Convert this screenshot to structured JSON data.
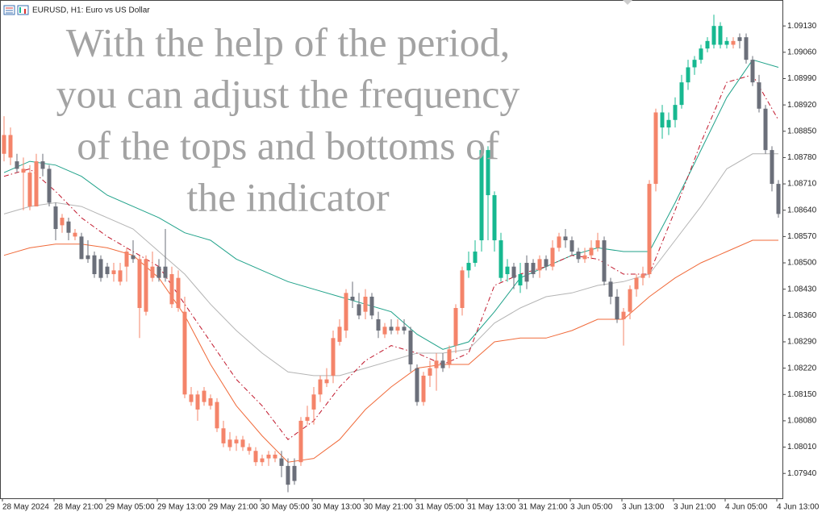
{
  "chart_data": {
    "type": "candlestick",
    "title": "EURUSD, H1:  Euro vs US Dollar",
    "annotations": [
      "With the help of the period,",
      "you can adjust the frequency",
      "of the tops and bottoms of",
      "the indicator"
    ],
    "categories": [
      "28 May 2024",
      null,
      null,
      null,
      null,
      null,
      null,
      null,
      "28 May 21:00",
      null,
      null,
      null,
      null,
      null,
      null,
      null,
      "29 May 05:00",
      null,
      null,
      null,
      null,
      null,
      null,
      null,
      "29 May 13:00",
      null,
      null,
      null,
      null,
      null,
      null,
      null,
      "29 May 21:00",
      null,
      null,
      null,
      null,
      null,
      null,
      null,
      "30 May 05:00",
      null,
      null,
      null,
      null,
      null,
      null,
      null,
      "30 May 13:00",
      null,
      null,
      null,
      null,
      null,
      null,
      null,
      "30 May 21:00",
      null,
      null,
      null,
      null,
      null,
      null,
      null,
      "31 May 05:00",
      null,
      null,
      null,
      null,
      null,
      null,
      null,
      "31 May 13:00",
      null,
      null,
      null,
      null,
      null,
      null,
      null,
      "31 May 21:00",
      null,
      null,
      null,
      null,
      null,
      null,
      null,
      "3 Jun 05:00",
      null,
      null,
      null,
      null,
      null,
      null,
      null,
      "3 Jun 13:00",
      null,
      null,
      null,
      null,
      null,
      null,
      null,
      "3 Jun 21:00",
      null,
      null,
      null,
      null,
      null,
      null,
      null,
      "4 Jun 05:00",
      null,
      null,
      null,
      null,
      null,
      null,
      null,
      "4 Jun 13:00"
    ],
    "open": [
      1.0879,
      1.0884,
      1.0877,
      1.0875,
      1.0874,
      1.0865,
      1.0877,
      1.0875,
      1.0865,
      1.086,
      1.0861,
      1.0857,
      1.0857,
      1.0852,
      1.0852,
      1.0851,
      1.0849,
      1.0847,
      1.0848,
      1.0849,
      1.0852,
      1.0851,
      1.0851,
      1.0849,
      1.0849,
      1.0849,
      1.0847,
      1.0846,
      1.0837,
      1.0815,
      1.0815,
      1.0816,
      1.0814,
      1.0813,
      1.0806,
      1.0803,
      1.0802,
      1.0803,
      1.0801,
      1.08,
      1.0797,
      1.0798,
      1.0799,
      1.0798,
      1.0796,
      1.0792,
      1.0797,
      1.0808,
      1.0811,
      1.0815,
      1.0818,
      1.082,
      1.0829,
      1.0832,
      1.0841,
      1.0839,
      1.0837,
      1.0841,
      1.0835,
      1.0831,
      1.0833,
      1.0832,
      1.0833,
      1.0832,
      1.0822,
      1.0813,
      1.082,
      1.0822,
      1.0824,
      1.0823,
      1.0828,
      1.0838,
      1.0848,
      1.085,
      1.0856,
      1.088,
      1.0868,
      1.0856,
      1.0847,
      1.0849,
      1.0847,
      1.0845,
      1.085,
      1.0848,
      1.0851,
      1.0849,
      1.0854,
      1.0857,
      1.0856,
      1.0853,
      1.0851,
      1.0852,
      1.0854,
      1.0856,
      1.0845,
      1.0841,
      1.0835,
      1.0837,
      1.0843,
      1.0846,
      1.0847,
      1.0871,
      1.089,
      1.0886,
      1.0888,
      1.0892,
      1.0898,
      1.0902,
      1.0904,
      1.0907,
      1.0908,
      1.0913,
      1.0908,
      1.0909,
      1.0909,
      1.091,
      1.0904,
      1.0898,
      1.0891,
      1.088,
      1.0871
    ],
    "high": [
      1.0889,
      1.0886,
      1.0879,
      1.0878,
      1.0876,
      1.0879,
      1.0879,
      1.0876,
      1.0866,
      1.0863,
      1.0862,
      1.0859,
      1.0858,
      1.0856,
      1.0853,
      1.0852,
      1.085,
      1.085,
      1.085,
      1.0854,
      1.0856,
      1.0852,
      1.0852,
      1.0853,
      1.0851,
      1.0859,
      1.0849,
      1.0848,
      1.0841,
      1.0817,
      1.0816,
      1.0817,
      1.0815,
      1.0814,
      1.0808,
      1.0805,
      1.0804,
      1.0804,
      1.0802,
      1.0801,
      1.0799,
      1.08,
      1.08,
      1.08,
      1.0798,
      1.0798,
      1.0809,
      1.0812,
      1.0817,
      1.082,
      1.0822,
      1.0832,
      1.0835,
      1.0843,
      1.0845,
      1.0842,
      1.0843,
      1.0842,
      1.0837,
      1.0834,
      1.0835,
      1.0835,
      1.0835,
      1.0833,
      1.0823,
      1.0821,
      1.0824,
      1.0826,
      1.0826,
      1.0828,
      1.0839,
      1.0849,
      1.0853,
      1.0856,
      1.0882,
      1.0881,
      1.0869,
      1.0858,
      1.0851,
      1.085,
      1.085,
      1.0852,
      1.0851,
      1.0852,
      1.0852,
      1.0856,
      1.0858,
      1.0859,
      1.0857,
      1.0854,
      1.0854,
      1.0856,
      1.0858,
      1.0857,
      1.0846,
      1.0843,
      1.0838,
      1.0844,
      1.0847,
      1.0849,
      1.0872,
      1.0891,
      1.0892,
      1.089,
      1.0894,
      1.09,
      1.0904,
      1.0905,
      1.0908,
      1.091,
      1.0916,
      1.0914,
      1.091,
      1.091,
      1.0911,
      1.0911,
      1.0905,
      1.09,
      1.0892,
      1.0881,
      1.0872
    ],
    "low": [
      1.0877,
      1.0876,
      1.0874,
      1.0864,
      1.0864,
      1.0865,
      1.0873,
      1.0865,
      1.0856,
      1.0858,
      1.0856,
      1.0856,
      1.0851,
      1.085,
      1.0846,
      1.0845,
      1.0846,
      1.0845,
      1.0844,
      1.0845,
      1.085,
      1.083,
      1.0836,
      1.0845,
      1.0845,
      1.0845,
      1.0838,
      1.0837,
      1.0814,
      1.0812,
      1.0808,
      1.0812,
      1.0811,
      1.0805,
      1.0801,
      1.08,
      1.08,
      1.08,
      1.0799,
      1.0796,
      1.0796,
      1.0796,
      1.0797,
      1.0793,
      1.0789,
      1.0791,
      1.0796,
      1.0807,
      1.0807,
      1.0813,
      1.0817,
      1.0818,
      1.0828,
      1.083,
      1.0838,
      1.0835,
      1.0835,
      1.0835,
      1.083,
      1.083,
      1.0831,
      1.0831,
      1.0831,
      1.0821,
      1.0812,
      1.0812,
      1.0817,
      1.0816,
      1.0821,
      1.0822,
      1.0826,
      1.0836,
      1.0846,
      1.0849,
      1.0853,
      1.0856,
      1.0853,
      1.0845,
      1.0845,
      1.0843,
      1.0842,
      1.0843,
      1.0846,
      1.0846,
      1.0848,
      1.0848,
      1.0853,
      1.0854,
      1.0852,
      1.085,
      1.085,
      1.0851,
      1.0853,
      1.0844,
      1.0839,
      1.0834,
      1.0828,
      1.0835,
      1.0841,
      1.0844,
      1.0846,
      1.0869,
      1.0883,
      1.0884,
      1.0886,
      1.0891,
      1.0896,
      1.09,
      1.0903,
      1.0906,
      1.0907,
      1.0907,
      1.0907,
      1.0907,
      1.0907,
      1.0903,
      1.0897,
      1.089,
      1.0879,
      1.0869,
      1.0862
    ],
    "close": [
      1.0884,
      1.0878,
      1.0875,
      1.0874,
      1.0865,
      1.0877,
      1.0875,
      1.0866,
      1.0859,
      1.0862,
      1.0858,
      1.0858,
      1.0851,
      1.0851,
      1.0847,
      1.0846,
      1.0847,
      1.0848,
      1.0845,
      1.0853,
      1.0851,
      1.0838,
      1.0837,
      1.0846,
      1.0846,
      1.0846,
      1.0839,
      1.0838,
      1.0815,
      1.0813,
      1.0811,
      1.0813,
      1.0812,
      1.0806,
      1.0802,
      1.0801,
      1.0803,
      1.0801,
      1.08,
      1.0797,
      1.0798,
      1.0799,
      1.0798,
      1.0796,
      1.0791,
      1.0796,
      1.0808,
      1.0809,
      1.0815,
      1.0819,
      1.0819,
      1.083,
      1.0833,
      1.0842,
      1.084,
      1.0836,
      1.0841,
      1.0836,
      1.0832,
      1.0833,
      1.0832,
      1.0833,
      1.0832,
      1.0823,
      1.0813,
      1.082,
      1.0822,
      1.0824,
      1.0822,
      1.0827,
      1.0838,
      1.0848,
      1.085,
      1.0853,
      1.088,
      1.0868,
      1.0856,
      1.0846,
      1.0849,
      1.0846,
      1.0844,
      1.085,
      1.0847,
      1.0851,
      1.0849,
      1.0854,
      1.0857,
      1.0856,
      1.0853,
      1.0851,
      1.0852,
      1.0854,
      1.0856,
      1.0845,
      1.0841,
      1.0835,
      1.0837,
      1.0843,
      1.0846,
      1.0847,
      1.0871,
      1.089,
      1.0886,
      1.0888,
      1.0892,
      1.0898,
      1.0902,
      1.0904,
      1.0907,
      1.0909,
      1.0913,
      1.0908,
      1.0909,
      1.0908,
      1.091,
      1.0904,
      1.0898,
      1.0891,
      1.088,
      1.0871,
      1.0863
    ],
    "colors": [
      "#f4846a",
      "#f4846a",
      "#6b6f7a",
      "#f4846a",
      "#f4846a",
      "#f4846a",
      "#6b6f7a",
      "#6b6f7a",
      "#6b6f7a",
      "#f4846a",
      "#6b6f7a",
      "#f4846a",
      "#6b6f7a",
      "#6b6f7a",
      "#6b6f7a",
      "#6b6f7a",
      "#6b6f7a",
      "#f4846a",
      "#f4846a",
      "#f4846a",
      "#6b6f7a",
      "#f4846a",
      "#f4846a",
      "#f4846a",
      "#6b6f7a",
      "#6b6f7a",
      "#f4846a",
      "#f4846a",
      "#f4846a",
      "#f4846a",
      "#f4846a",
      "#f4846a",
      "#f4846a",
      "#f4846a",
      "#f4846a",
      "#f4846a",
      "#f4846a",
      "#f4846a",
      "#f4846a",
      "#f4846a",
      "#f4846a",
      "#f4846a",
      "#f4846a",
      "#6b6f7a",
      "#6b6f7a",
      "#6b6f7a",
      "#f4846a",
      "#f4846a",
      "#f4846a",
      "#f4846a",
      "#f4846a",
      "#f4846a",
      "#f4846a",
      "#f4846a",
      "#6b6f7a",
      "#6b6f7a",
      "#f4846a",
      "#6b6f7a",
      "#6b6f7a",
      "#f4846a",
      "#6b6f7a",
      "#f4846a",
      "#6b6f7a",
      "#6b6f7a",
      "#6b6f7a",
      "#f4846a",
      "#f4846a",
      "#f4846a",
      "#6b6f7a",
      "#f4846a",
      "#f4846a",
      "#f4846a",
      "#17b890",
      "#17b890",
      "#17b890",
      "#17b890",
      "#17b890",
      "#17b890",
      "#17b890",
      "#6b6f7a",
      "#17b890",
      "#6b6f7a",
      "#6b6f7a",
      "#f4846a",
      "#6b6f7a",
      "#f4846a",
      "#f4846a",
      "#6b6f7a",
      "#6b6f7a",
      "#6b6f7a",
      "#f4846a",
      "#f4846a",
      "#f4846a",
      "#6b6f7a",
      "#6b6f7a",
      "#6b6f7a",
      "#f4846a",
      "#f4846a",
      "#f4846a",
      "#f4846a",
      "#f4846a",
      "#f4846a",
      "#17b890",
      "#17b890",
      "#17b890",
      "#17b890",
      "#17b890",
      "#17b890",
      "#17b890",
      "#17b890",
      "#17b890",
      "#17b890",
      "#17b890",
      "#f4846a",
      "#6b6f7a",
      "#6b6f7a",
      "#6b6f7a",
      "#6b6f7a",
      "#6b6f7a",
      "#6b6f7a",
      "#6b6f7a"
    ],
    "indicator_x": [
      0,
      4,
      8,
      12,
      16,
      20,
      24,
      28,
      32,
      36,
      40,
      44,
      48,
      52,
      56,
      60,
      64,
      68,
      72,
      76,
      80,
      84,
      88,
      92,
      96,
      100,
      104,
      108,
      112,
      116,
      120
    ],
    "indicators": [
      {
        "color": "#20a28a",
        "style": "solid",
        "values": [
          1.0874,
          1.0877,
          1.0876,
          1.0873,
          1.0868,
          1.0865,
          1.0862,
          1.0858,
          1.0856,
          1.0851,
          1.0848,
          1.0845,
          1.0843,
          1.0841,
          1.0839,
          1.0837,
          1.0831,
          1.0827,
          1.0829,
          1.0837,
          1.0846,
          1.0849,
          1.0852,
          1.0854,
          1.0853,
          1.0853,
          1.0866,
          1.088,
          1.0894,
          1.0904,
          1.0902
        ]
      },
      {
        "color": "#b4b4b4",
        "style": "solid",
        "values": [
          1.0863,
          1.0865,
          1.0866,
          1.0865,
          1.0862,
          1.0859,
          1.0853,
          1.0847,
          1.0839,
          1.0832,
          1.0826,
          1.0821,
          1.082,
          1.082,
          1.0822,
          1.0824,
          1.0826,
          1.0826,
          1.0827,
          1.0834,
          1.0838,
          1.0841,
          1.0842,
          1.0844,
          1.0845,
          1.0847,
          1.0856,
          1.0865,
          1.0875,
          1.0879,
          1.0879
        ]
      },
      {
        "color": "#c0152a",
        "style": "dash-dot",
        "values": [
          1.0873,
          1.0875,
          1.0869,
          1.0862,
          1.0857,
          1.0853,
          1.0849,
          1.0839,
          1.0829,
          1.0819,
          1.0812,
          1.0803,
          1.0808,
          1.0817,
          1.0824,
          1.0828,
          1.0826,
          1.0823,
          1.0826,
          1.0844,
          1.0847,
          1.0849,
          1.0852,
          1.0851,
          1.0847,
          1.0847,
          1.0864,
          1.0882,
          1.0898,
          1.09,
          1.0888
        ]
      },
      {
        "color": "#f06a3a",
        "style": "solid",
        "values": [
          1.0852,
          1.0854,
          1.0855,
          1.0855,
          1.0854,
          1.0852,
          1.0846,
          1.0836,
          1.0823,
          1.0812,
          1.0804,
          1.0797,
          1.0798,
          1.0803,
          1.0811,
          1.0817,
          1.0822,
          1.0823,
          1.0823,
          1.0829,
          1.083,
          1.083,
          1.0832,
          1.0835,
          1.0835,
          1.0841,
          1.0846,
          1.085,
          1.0853,
          1.0856,
          1.0856
        ]
      }
    ],
    "ylim": [
      1.07874,
      1.09199
    ],
    "yticks": [
      {
        "value": 1.0913,
        "label": "1.09130"
      },
      {
        "value": 1.0906,
        "label": "1.09060"
      },
      {
        "value": 1.0899,
        "label": "1.08990"
      },
      {
        "value": 1.0892,
        "label": "1.08920"
      },
      {
        "value": 1.0885,
        "label": "1.08850"
      },
      {
        "value": 1.0878,
        "label": "1.08780"
      },
      {
        "value": 1.0871,
        "label": "1.08710"
      },
      {
        "value": 1.0864,
        "label": "1.08640"
      },
      {
        "value": 1.0857,
        "label": "1.08570"
      },
      {
        "value": 1.085,
        "label": "1.08500"
      },
      {
        "value": 1.0843,
        "label": "1.08430"
      },
      {
        "value": 1.0836,
        "label": "1.08360"
      },
      {
        "value": 1.0829,
        "label": "1.08290"
      },
      {
        "value": 1.0822,
        "label": "1.08220"
      },
      {
        "value": 1.0815,
        "label": "1.08150"
      },
      {
        "value": 1.0808,
        "label": "1.08080"
      },
      {
        "value": 1.0801,
        "label": "1.08010"
      },
      {
        "value": 1.0794,
        "label": "1.07940"
      }
    ],
    "grid": false
  }
}
